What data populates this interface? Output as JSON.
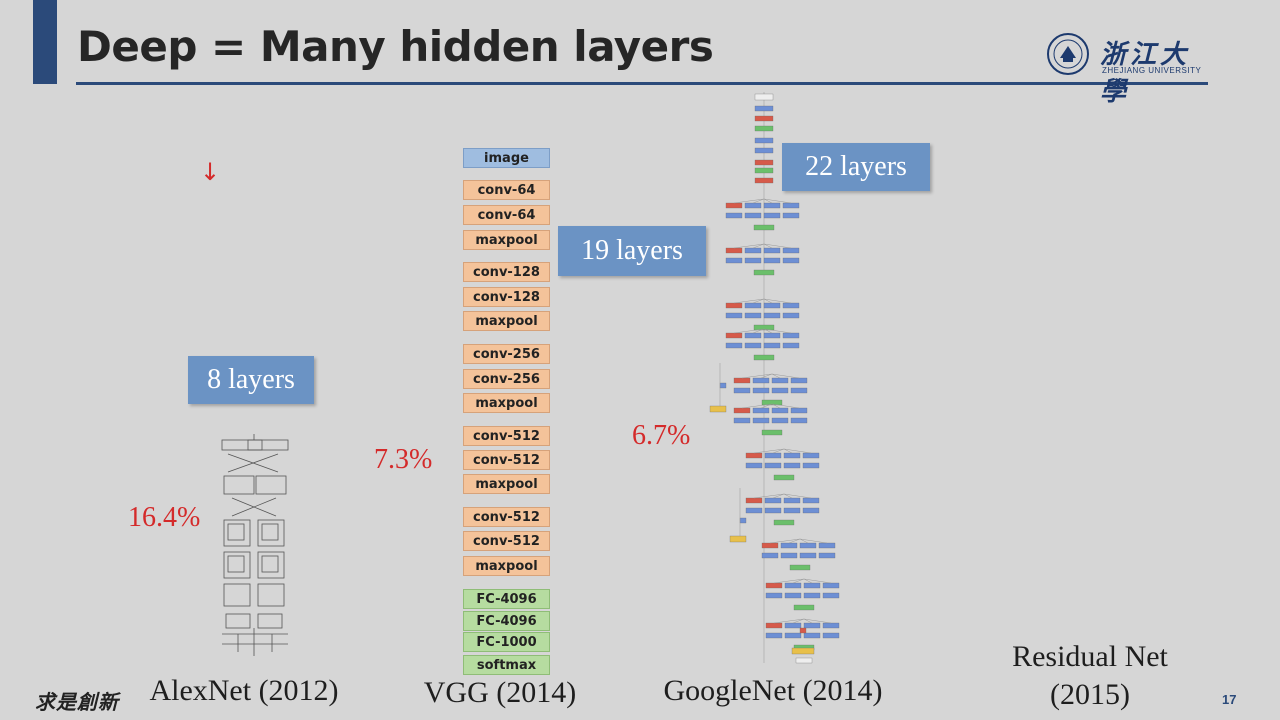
{
  "slide": {
    "title": "Deep = Many hidden layers",
    "page_number": "17",
    "arrow_glyph": "↓"
  },
  "logo": {
    "chinese": "浙江大學",
    "english": "ZHEJIANG UNIVERSITY"
  },
  "brand_mark": "求是創新",
  "networks": [
    {
      "name": "AlexNet (2012)",
      "layers": "8 layers",
      "error": "16.4%"
    },
    {
      "name": "VGG (2014)",
      "layers": "19 layers",
      "error": "7.3%"
    },
    {
      "name": "GoogleNet (2014)",
      "layers": "22 layers",
      "error": "6.7%"
    },
    {
      "name_line1": "Residual Net",
      "name_line2": "(2015)"
    }
  ],
  "vgg_blocks": [
    {
      "label": "image",
      "kind": "image"
    },
    {
      "label": "conv-64",
      "kind": "conv"
    },
    {
      "label": "conv-64",
      "kind": "conv"
    },
    {
      "label": "maxpool",
      "kind": "pool"
    },
    {
      "label": "conv-128",
      "kind": "conv"
    },
    {
      "label": "conv-128",
      "kind": "conv"
    },
    {
      "label": "maxpool",
      "kind": "pool"
    },
    {
      "label": "conv-256",
      "kind": "conv"
    },
    {
      "label": "conv-256",
      "kind": "conv"
    },
    {
      "label": "maxpool",
      "kind": "pool"
    },
    {
      "label": "conv-512",
      "kind": "conv"
    },
    {
      "label": "conv-512",
      "kind": "conv"
    },
    {
      "label": "maxpool",
      "kind": "pool"
    },
    {
      "label": "conv-512",
      "kind": "conv"
    },
    {
      "label": "conv-512",
      "kind": "conv"
    },
    {
      "label": "maxpool",
      "kind": "pool"
    },
    {
      "label": "FC-4096",
      "kind": "fc"
    },
    {
      "label": "FC-4096",
      "kind": "fc"
    },
    {
      "label": "FC-1000",
      "kind": "fc"
    },
    {
      "label": "softmax",
      "kind": "fc"
    }
  ],
  "colors": {
    "accent": "#2b4a7a",
    "callout": "#6b93c4",
    "error_text": "#d42a2a",
    "conv": "#f4c39a",
    "fc": "#b6dca0",
    "image": "#9fbde0"
  }
}
